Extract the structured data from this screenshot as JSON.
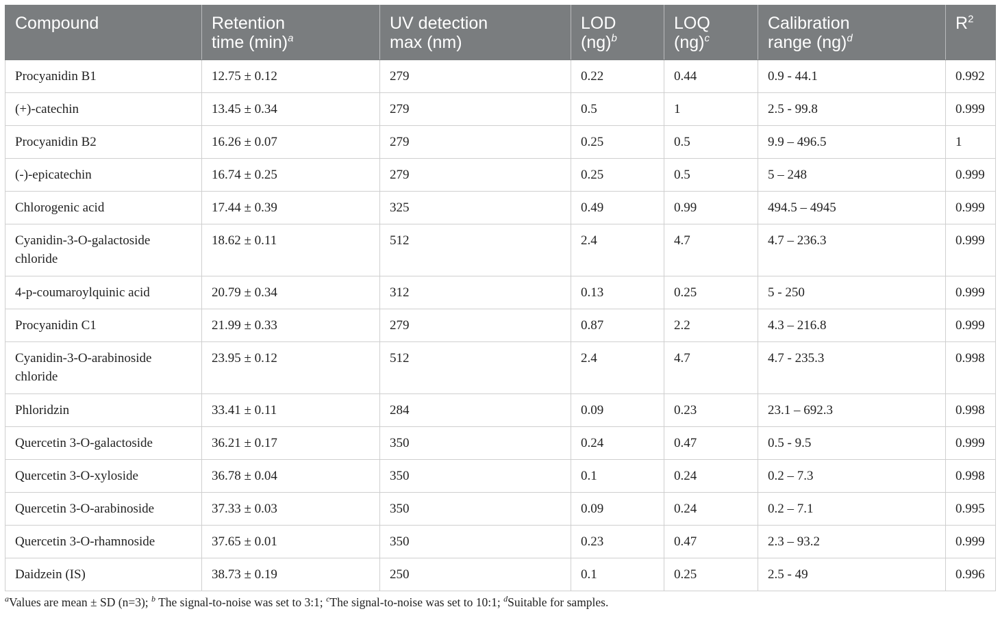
{
  "table": {
    "headers": [
      {
        "line1": "Compound",
        "line2": "",
        "sup": ""
      },
      {
        "line1": "Retention",
        "line2": "time (min)",
        "sup": "a"
      },
      {
        "line1": "UV detection",
        "line2": "max (nm)",
        "sup": ""
      },
      {
        "line1": "LOD",
        "line2": "(ng)",
        "sup": "b"
      },
      {
        "line1": "LOQ",
        "line2": "(ng)",
        "sup": "c"
      },
      {
        "line1": "Calibration",
        "line2": "range (ng)",
        "sup": "d"
      },
      {
        "line1": "R",
        "line2": "",
        "sup": "2"
      }
    ],
    "rows": [
      [
        "Procyanidin B1",
        "12.75 ± 0.12",
        "279",
        "0.22",
        "0.44",
        "0.9 - 44.1",
        "0.992"
      ],
      [
        "(+)-catechin",
        "13.45 ± 0.34",
        "279",
        "0.5",
        "1",
        "2.5 - 99.8",
        "0.999"
      ],
      [
        "Procyanidin B2",
        "16.26 ± 0.07",
        "279",
        "0.25",
        "0.5",
        "9.9 – 496.5",
        "1"
      ],
      [
        "(-)-epicatechin",
        "16.74 ± 0.25",
        "279",
        "0.25",
        "0.5",
        "5 – 248",
        "0.999"
      ],
      [
        "Chlorogenic acid",
        "17.44 ± 0.39",
        "325",
        "0.49",
        "0.99",
        "494.5 – 4945",
        "0.999"
      ],
      [
        "Cyanidin-3-O-galactoside chloride",
        "18.62 ± 0.11",
        "512",
        "2.4",
        "4.7",
        "4.7 – 236.3",
        "0.999"
      ],
      [
        "4-p-coumaroylquinic acid",
        "20.79 ± 0.34",
        "312",
        "0.13",
        "0.25",
        "5 - 250",
        "0.999"
      ],
      [
        "Procyanidin C1",
        "21.99 ± 0.33",
        "279",
        "0.87",
        "2.2",
        "4.3 – 216.8",
        "0.999"
      ],
      [
        "Cyanidin-3-O-arabinoside chloride",
        "23.95 ± 0.12",
        "512",
        "2.4",
        "4.7",
        "4.7 - 235.3",
        "0.998"
      ],
      [
        "Phloridzin",
        "33.41 ± 0.11",
        "284",
        "0.09",
        "0.23",
        "23.1 – 692.3",
        "0.998"
      ],
      [
        "Quercetin 3-O-galactoside",
        "36.21 ± 0.17",
        "350",
        "0.24",
        "0.47",
        "0.5 - 9.5",
        "0.999"
      ],
      [
        "Quercetin 3-O-xyloside",
        "36.78 ± 0.04",
        "350",
        "0.1",
        "0.24",
        "0.2 – 7.3",
        "0.998"
      ],
      [
        "Quercetin 3-O-arabinoside",
        "37.33 ± 0.03",
        "350",
        "0.09",
        "0.24",
        "0.2 – 7.1",
        "0.995"
      ],
      [
        "Quercetin 3-O-rhamnoside",
        "37.65 ± 0.01",
        "350",
        "0.23",
        "0.47",
        "2.3 – 93.2",
        "0.999"
      ],
      [
        "Daidzein (IS)",
        "38.73 ± 0.19",
        "250",
        "0.1",
        "0.25",
        "2.5 - 49",
        "0.996"
      ]
    ]
  },
  "footnote": [
    {
      "sup": "a",
      "text": "Values are mean ± SD (n=3); "
    },
    {
      "sup": "b",
      "text": " The signal-to-noise was set to 3:1; "
    },
    {
      "sup": "c",
      "text": "The signal-to-noise was set to 10:1; "
    },
    {
      "sup": "d",
      "text": "Suitable for samples."
    }
  ]
}
